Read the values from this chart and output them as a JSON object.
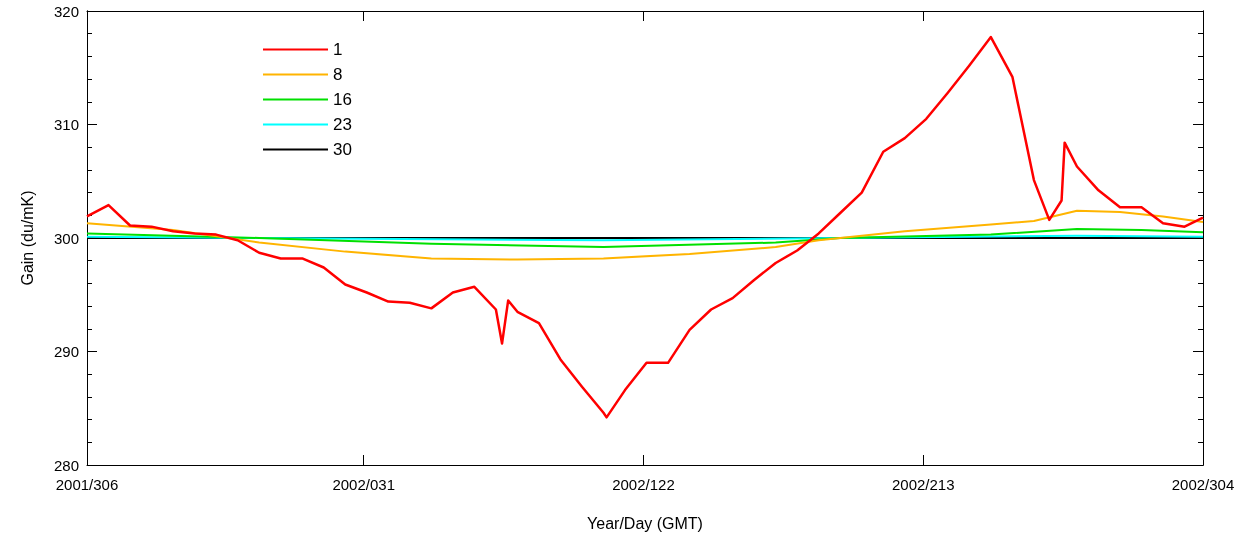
{
  "chart_data": {
    "type": "line",
    "xlabel": "Year/Day (GMT)",
    "ylabel": "Gain (du/mK)",
    "xlim": [
      "2001-11-02",
      "2002-10-31"
    ],
    "xticks": [
      {
        "value": "2001-11-02",
        "label": "2001/306"
      },
      {
        "value": "2002-01-31",
        "label": "2002/031"
      },
      {
        "value": "2002-05-02",
        "label": "2002/122"
      },
      {
        "value": "2002-08-01",
        "label": "2002/213"
      },
      {
        "value": "2002-10-31",
        "label": "2002/304"
      }
    ],
    "ylim": [
      280,
      320
    ],
    "yticks": [
      280,
      {
        "value": 282,
        "label": null
      },
      {
        "value": 284,
        "label": null
      },
      {
        "value": 286,
        "label": null
      },
      {
        "value": 288,
        "label": null
      },
      290,
      {
        "value": 292,
        "label": null
      },
      {
        "value": 294,
        "label": null
      },
      {
        "value": 296,
        "label": null
      },
      {
        "value": 298,
        "label": null
      },
      300,
      {
        "value": 302,
        "label": null
      },
      {
        "value": 304,
        "label": null
      },
      {
        "value": 306,
        "label": null
      },
      {
        "value": 308,
        "label": null
      },
      310,
      {
        "value": 312,
        "label": null
      },
      {
        "value": 314,
        "label": null
      },
      {
        "value": 316,
        "label": null
      },
      {
        "value": 318,
        "label": null
      },
      320
    ],
    "grid": false,
    "legend": "top left",
    "marker": "none",
    "line_style": "solid",
    "series": [
      {
        "name": "1",
        "color": "#ff0000",
        "x": [
          "2001-11-02",
          "2001-11-09",
          "2001-11-16",
          "2001-11-23",
          "2001-11-30",
          "2001-12-07",
          "2001-12-14",
          "2001-12-21",
          "2001-12-28",
          "2002-01-04",
          "2002-01-11",
          "2002-01-18",
          "2002-01-25",
          "2002-02-01",
          "2002-02-08",
          "2002-02-15",
          "2002-02-22",
          "2002-03-01",
          "2002-03-08",
          "2002-03-15",
          "2002-03-17",
          "2002-03-19",
          "2002-03-22",
          "2002-03-29",
          "2002-04-05",
          "2002-04-12",
          "2002-04-19",
          "2002-04-20",
          "2002-04-26",
          "2002-05-03",
          "2002-05-10",
          "2002-05-17",
          "2002-05-24",
          "2002-05-31",
          "2002-06-07",
          "2002-06-14",
          "2002-06-21",
          "2002-06-28",
          "2002-07-05",
          "2002-07-12",
          "2002-07-19",
          "2002-07-26",
          "2002-08-02",
          "2002-08-09",
          "2002-08-16",
          "2002-08-23",
          "2002-08-30",
          "2002-09-06",
          "2002-09-11",
          "2002-09-15",
          "2002-09-16",
          "2002-09-20",
          "2002-09-27",
          "2002-10-04",
          "2002-10-11",
          "2002-10-18",
          "2002-10-25",
          "2002-10-31"
        ],
        "values": [
          301.9,
          302.9,
          301.1,
          301.0,
          300.6,
          300.4,
          300.3,
          299.8,
          298.7,
          298.2,
          298.2,
          297.4,
          295.9,
          295.2,
          294.4,
          294.3,
          293.8,
          295.2,
          295.7,
          293.7,
          290.7,
          294.5,
          293.5,
          292.5,
          289.3,
          286.9,
          284.6,
          284.2,
          286.6,
          289.0,
          289.0,
          291.9,
          293.7,
          294.7,
          296.3,
          297.8,
          298.9,
          300.4,
          302.2,
          304.0,
          307.6,
          308.8,
          310.5,
          312.8,
          315.2,
          317.7,
          314.2,
          305.1,
          301.6,
          303.3,
          308.4,
          306.3,
          304.2,
          302.7,
          302.7,
          301.3,
          301.0,
          301.8
        ]
      },
      {
        "name": "8",
        "color": "#ffb400",
        "x": [
          "2001-11-02",
          "2001-11-30",
          "2001-12-28",
          "2002-01-25",
          "2002-02-22",
          "2002-03-22",
          "2002-04-19",
          "2002-05-17",
          "2002-06-14",
          "2002-06-28",
          "2002-07-05",
          "2002-07-26",
          "2002-08-23",
          "2002-09-06",
          "2002-09-20",
          "2002-10-04",
          "2002-10-18",
          "2002-10-31"
        ],
        "values": [
          301.3,
          300.7,
          299.6,
          298.8,
          298.2,
          298.1,
          298.2,
          298.6,
          299.2,
          299.8,
          300.0,
          300.6,
          301.2,
          301.5,
          302.4,
          302.3,
          301.9,
          301.4
        ]
      },
      {
        "name": "16",
        "color": "#00e000",
        "x": [
          "2001-11-02",
          "2001-12-28",
          "2002-02-22",
          "2002-04-19",
          "2002-06-14",
          "2002-07-05",
          "2002-08-23",
          "2002-09-20",
          "2002-10-11",
          "2002-10-31"
        ],
        "values": [
          300.4,
          300.0,
          299.5,
          299.2,
          299.6,
          300.0,
          300.3,
          300.8,
          300.7,
          300.5
        ]
      },
      {
        "name": "23",
        "color": "#00ffff",
        "x": [
          "2001-11-02",
          "2001-12-28",
          "2002-04-19",
          "2002-07-05",
          "2002-09-20",
          "2002-10-31"
        ],
        "values": [
          300.1,
          300.0,
          299.8,
          300.0,
          300.2,
          300.1
        ]
      },
      {
        "name": "30",
        "color": "#000000",
        "x": [
          "2001-11-02",
          "2002-04-19",
          "2002-10-31"
        ],
        "values": [
          300.0,
          300.0,
          300.0
        ]
      }
    ]
  }
}
